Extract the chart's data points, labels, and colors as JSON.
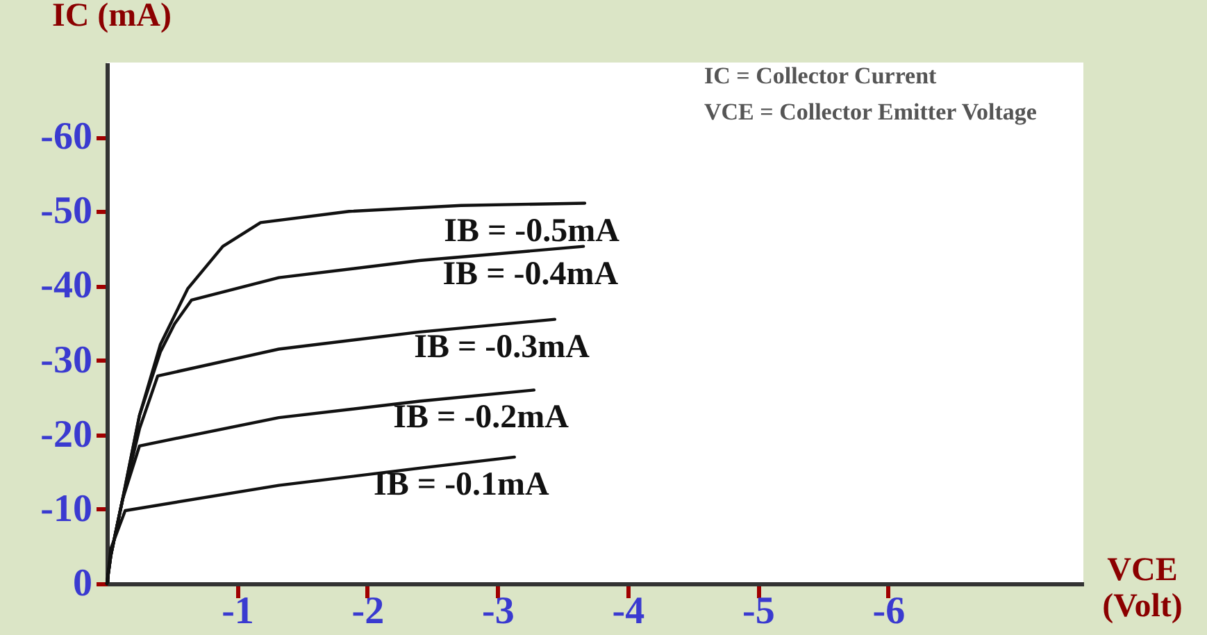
{
  "chart_data": {
    "type": "line",
    "xlabel": "VCE (Volt)",
    "ylabel": "IC (mA)",
    "xlim": [
      0,
      -7.5
    ],
    "xticks": [
      {
        "value": -1,
        "label": "-1"
      },
      {
        "value": -2,
        "label": "-2"
      },
      {
        "value": -3,
        "label": "-3"
      },
      {
        "value": -4,
        "label": "-4"
      },
      {
        "value": -5,
        "label": "-5"
      },
      {
        "value": -6,
        "label": "-6"
      }
    ],
    "ylim": [
      0,
      -70
    ],
    "yticks": [
      {
        "value": 0,
        "label": "0"
      },
      {
        "value": -10,
        "label": "-10"
      },
      {
        "value": -20,
        "label": "-20"
      },
      {
        "value": -30,
        "label": "-30"
      },
      {
        "value": -40,
        "label": "-40"
      },
      {
        "value": -50,
        "label": "-50"
      },
      {
        "value": -60,
        "label": "-60"
      }
    ],
    "grid": false,
    "series": [
      {
        "name": "IB = -0.5mA",
        "color": "#111111",
        "x": [
          0,
          -0.03,
          -0.12,
          -0.25,
          -0.41,
          -0.62,
          -0.89,
          -1.18,
          -1.86,
          -2.72,
          -3.67
        ],
        "values": [
          0,
          -3.8,
          -11.3,
          -22.6,
          -32.1,
          -39.6,
          -45.3,
          -48.5,
          -50,
          -50.8,
          -51.1
        ]
      },
      {
        "name": "IB = -0.4mA",
        "color": "#111111",
        "x": [
          0,
          -0.03,
          -0.12,
          -0.25,
          -0.41,
          -0.52,
          -0.65,
          -1.32,
          -2.4,
          -3.66
        ],
        "values": [
          0,
          -3.8,
          -11.3,
          -22.6,
          -31.1,
          -34.9,
          -38.1,
          -41.1,
          -43.4,
          -45.3
        ]
      },
      {
        "name": "IB = -0.3mA",
        "color": "#111111",
        "x": [
          0,
          -0.03,
          -0.12,
          -0.25,
          -0.39,
          -1.32,
          -2.4,
          -3.44
        ],
        "values": [
          0,
          -3.8,
          -11.3,
          -20.8,
          -27.9,
          -31.5,
          -33.8,
          -35.5
        ]
      },
      {
        "name": "IB = -0.2mA",
        "color": "#111111",
        "x": [
          0,
          -0.03,
          -0.12,
          -0.25,
          -1.32,
          -2.4,
          -3.28
        ],
        "values": [
          0,
          -3.8,
          -11.3,
          -18.5,
          -22.3,
          -24.5,
          -26.0
        ]
      },
      {
        "name": "IB = -0.1mA",
        "color": "#111111",
        "x": [
          0,
          -0.03,
          -0.14,
          -1.32,
          -2.4,
          -3.13
        ],
        "values": [
          0,
          -4.7,
          -9.8,
          -13.2,
          -15.5,
          -17.0
        ]
      }
    ],
    "annotations": [
      "IC = Collector Current",
      "VCE = Collector Emitter Voltage"
    ]
  }
}
